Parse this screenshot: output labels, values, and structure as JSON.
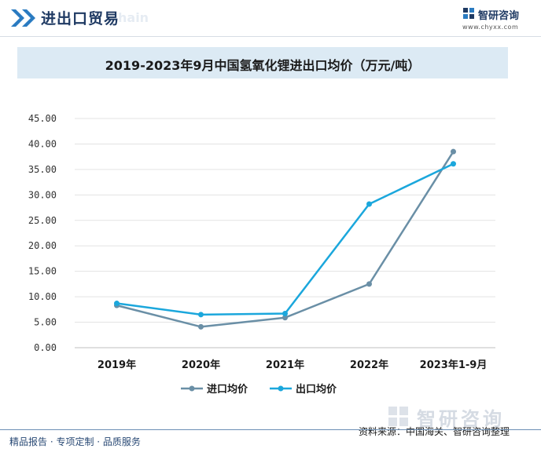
{
  "header": {
    "section_title": "进出口贸易",
    "ghost_text": "hain",
    "brand_name": "智研咨询",
    "brand_url": "www.chyxx.com"
  },
  "footer": {
    "left_text": "精品报告 · 专项定制 · 品质服务",
    "source": "资料来源：中国海关、智研咨询整理",
    "watermark": "智研咨询"
  },
  "colors": {
    "import_line": "#6a8fa6",
    "export_line": "#1ba7dc",
    "title_band": "#dceaf4"
  },
  "chart_data": {
    "type": "line",
    "title": "2019-2023年9月中国氢氧化锂进出口均价（万元/吨）",
    "categories": [
      "2019年",
      "2020年",
      "2021年",
      "2022年",
      "2023年1-9月"
    ],
    "series": [
      {
        "name": "进口均价",
        "values": [
          8.3,
          4.1,
          5.9,
          12.5,
          38.5
        ]
      },
      {
        "name": "出口均价",
        "values": [
          8.7,
          6.5,
          6.7,
          28.2,
          36.1
        ]
      }
    ],
    "y_ticks": [
      "45.00",
      "40.00",
      "35.00",
      "30.00",
      "25.00",
      "20.00",
      "15.00",
      "10.00",
      "5.00",
      "0.00"
    ],
    "ylim": [
      0,
      45
    ],
    "grid": true,
    "legend_position": "bottom"
  }
}
